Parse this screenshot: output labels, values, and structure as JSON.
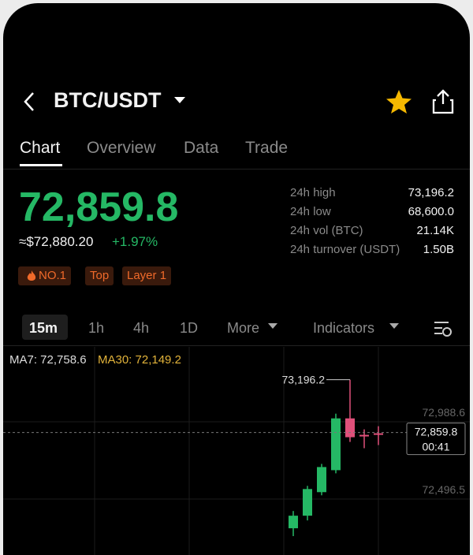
{
  "header": {
    "pair": "BTC/USDT"
  },
  "tabs": [
    "Chart",
    "Overview",
    "Data",
    "Trade"
  ],
  "price": {
    "last": "72,859.8",
    "fiat": "≈$72,880.20",
    "change": "+1.97%"
  },
  "stats": [
    {
      "label": "24h high",
      "value": "73,196.2"
    },
    {
      "label": "24h low",
      "value": "68,600.0"
    },
    {
      "label": "24h vol (BTC)",
      "value": "21.14K"
    },
    {
      "label": "24h turnover (USDT)",
      "value": "1.50B"
    }
  ],
  "tags": [
    "NO.1",
    "Top",
    "Layer 1"
  ],
  "intervals": [
    "15m",
    "1h",
    "4h",
    "1D",
    "More",
    "Indicators"
  ],
  "ma": [
    "MA7: 72,758.6",
    "MA30: 72,149.2"
  ],
  "chart": {
    "yticks": [
      {
        "value": 72988.6,
        "label": "72,988.6"
      },
      {
        "value": 72496.5,
        "label": "72,496.5"
      }
    ],
    "high_marker": {
      "value": 73196.2,
      "label": "73,196.2"
    },
    "current": {
      "value": 72859.8,
      "label": "72,859.8",
      "countdown": "00:41"
    },
    "candles": [
      {
        "open": 72250,
        "high": 72360,
        "low": 72200,
        "close": 72330
      },
      {
        "open": 72330,
        "high": 72520,
        "low": 72300,
        "close": 72500
      },
      {
        "open": 72480,
        "high": 72660,
        "low": 72460,
        "close": 72640
      },
      {
        "open": 72620,
        "high": 72980,
        "low": 72600,
        "close": 72950
      },
      {
        "open": 72950,
        "high": 73196.2,
        "low": 72800,
        "close": 72830
      },
      {
        "open": 72845,
        "high": 72880,
        "low": 72760,
        "close": 72835
      },
      {
        "open": 72855,
        "high": 72900,
        "low": 72780,
        "close": 72845
      }
    ]
  }
}
